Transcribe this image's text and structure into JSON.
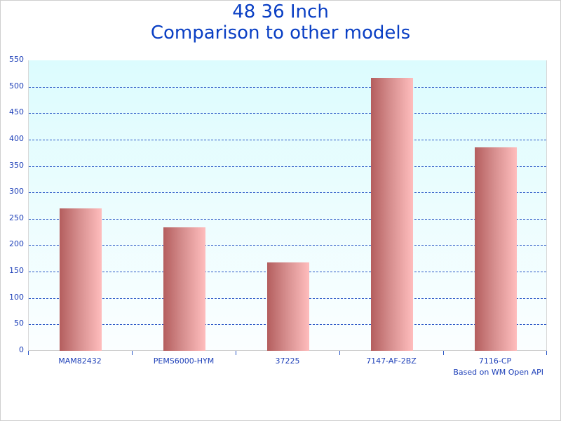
{
  "chart_data": {
    "type": "bar",
    "title": "48 36 Inch",
    "subtitle": "Comparison to other models",
    "categories": [
      "MAM82432",
      "PEMS6000-HYM",
      "37225",
      "7147-AF-2BZ",
      "7116-CP"
    ],
    "values": [
      270,
      234,
      167,
      517,
      385
    ],
    "xlabel": "",
    "ylabel": "",
    "ylim": [
      0,
      550
    ],
    "yticks": [
      0,
      50,
      100,
      150,
      200,
      250,
      300,
      350,
      400,
      450,
      500,
      550
    ],
    "grid": true,
    "legend": null,
    "annotation": "Based on WM Open API",
    "colors": {
      "title": "#0a3fc4",
      "axis_text": "#1d3fb8",
      "grid": "#2a56c6",
      "bar_dark": "#b45e5e",
      "bar_light": "#ffbdbd",
      "plot_bg_top": "#dcfcfe"
    }
  }
}
